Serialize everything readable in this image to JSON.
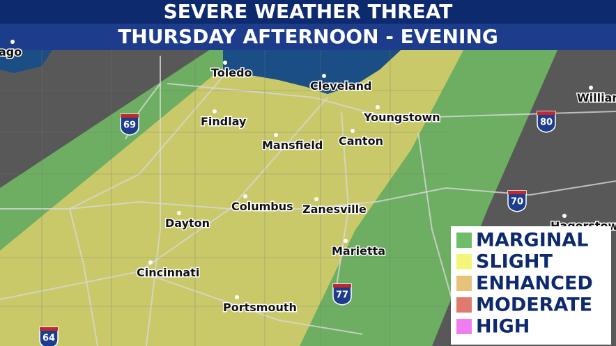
{
  "header": {
    "title": "SEVERE WEATHER THREAT",
    "subtitle": "THURSDAY AFTERNOON - EVENING"
  },
  "cities": [
    "ago",
    "Toledo",
    "Cleveland",
    "Findlay",
    "Youngstown",
    "Mansfield",
    "Canton",
    "Columbus",
    "Zanesville",
    "Dayton",
    "Marietta",
    "Cincinnati",
    "Portsmouth",
    "William",
    "Hagerstow"
  ],
  "highways": [
    "69",
    "80",
    "70",
    "77",
    "64"
  ],
  "legend": {
    "items": [
      {
        "label": "MARGINAL",
        "color": "#6dbd6a"
      },
      {
        "label": "SLIGHT",
        "color": "#f5f57a"
      },
      {
        "label": "ENHANCED",
        "color": "#e6c27a"
      },
      {
        "label": "MODERATE",
        "color": "#e07a70"
      },
      {
        "label": "HIGH",
        "color": "#f07ef0"
      }
    ]
  }
}
